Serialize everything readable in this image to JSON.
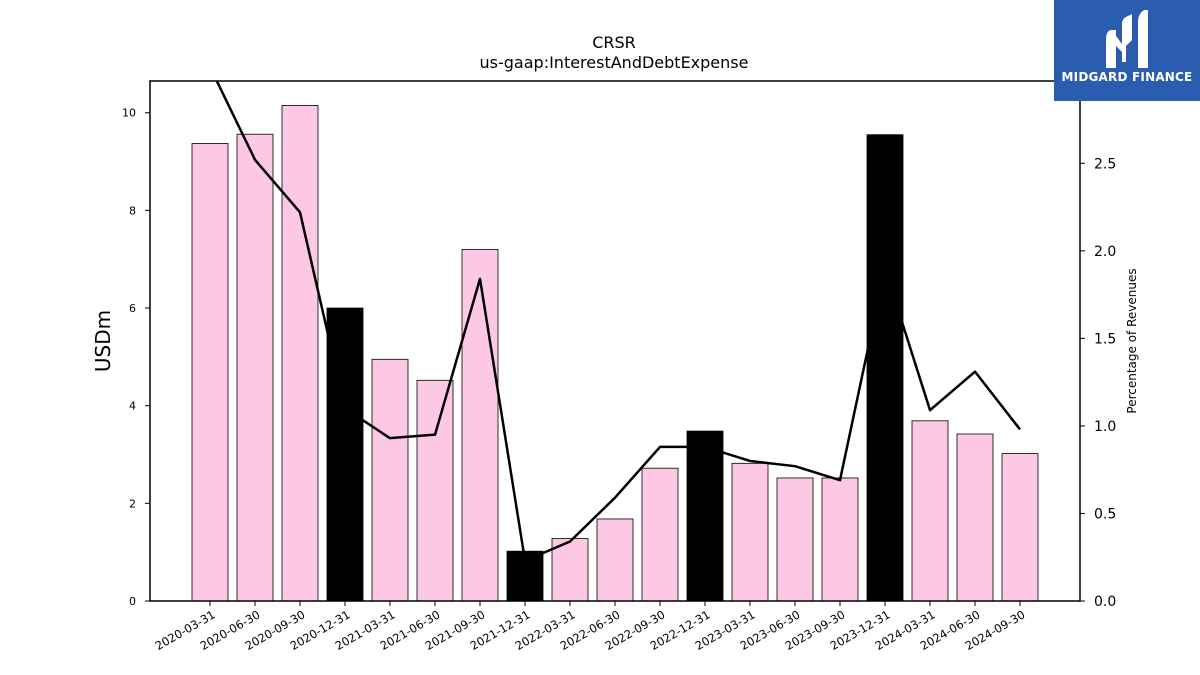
{
  "chart_data": {
    "type": "bar",
    "title": "CRSR",
    "subtitle": "us-gaap:InterestAndDebtExpense",
    "ylabel": "USDm",
    "y2label": "Percentage of Revenues",
    "ylim": [
      0,
      10.65
    ],
    "y2lim": [
      0,
      2.97
    ],
    "yticks": [
      "0",
      "2",
      "4",
      "6",
      "8",
      "10"
    ],
    "y2ticks": [
      "0.0",
      "0.5",
      "1.0",
      "1.5",
      "2.0",
      "2.5"
    ],
    "categories": [
      "2020-03-31",
      "2020-06-30",
      "2020-09-30",
      "2020-12-31",
      "2021-03-31",
      "2021-06-30",
      "2021-09-30",
      "2021-12-31",
      "2022-03-31",
      "2022-06-30",
      "2022-09-30",
      "2022-12-31",
      "2023-03-31",
      "2023-06-30",
      "2023-09-30",
      "2023-12-31",
      "2024-03-31",
      "2024-06-30",
      "2024-09-30"
    ],
    "values": [
      9.37,
      9.56,
      10.15,
      6.0,
      4.95,
      4.52,
      7.2,
      1.02,
      1.28,
      1.68,
      2.72,
      3.48,
      2.82,
      2.52,
      2.52,
      9.55,
      3.69,
      3.42,
      3.02
    ],
    "highlight": [
      false,
      false,
      false,
      true,
      false,
      false,
      false,
      true,
      false,
      false,
      false,
      true,
      false,
      false,
      false,
      true,
      false,
      false,
      false
    ],
    "line_values": [
      3.05,
      2.52,
      2.22,
      1.1,
      0.93,
      0.95,
      1.84,
      0.23,
      0.34,
      0.59,
      0.88,
      0.88,
      0.8,
      0.77,
      0.69,
      1.9,
      1.09,
      1.31,
      0.98
    ],
    "colors": {
      "bar": "#fcc8e4",
      "highlight": "#000000",
      "line": "#000000",
      "edge": "#000000"
    }
  },
  "logo": {
    "text": "MIDGARD FINANCE",
    "icon": "midgard-logo-icon",
    "color": "#2a5db0"
  }
}
